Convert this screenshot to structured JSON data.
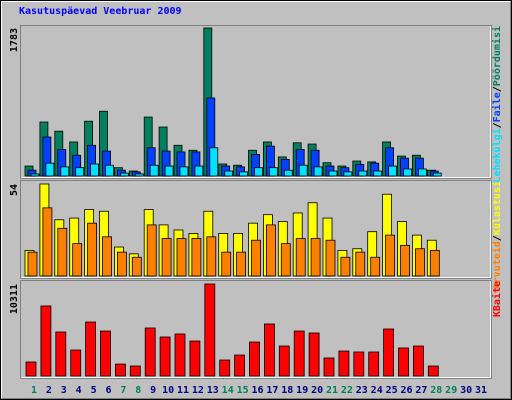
{
  "chart_data": [
    {
      "type": "bar",
      "title": "Kasutuspäevad Veebruar 2009",
      "legend_separator": "/",
      "ylim": [
        0,
        1783
      ],
      "yticks": [
        1783
      ],
      "series": [
        {
          "name": "Pöördumisi",
          "color": "#00805c",
          "values": [
            120,
            650,
            540,
            410,
            660,
            780,
            100,
            60,
            710,
            590,
            370,
            310,
            1783,
            145,
            130,
            310,
            410,
            230,
            400,
            385,
            160,
            120,
            180,
            170,
            410,
            240,
            250,
            70,
            null,
            null,
            null
          ]
        },
        {
          "name": "Faile",
          "color": "#0040ff",
          "values": [
            70,
            470,
            320,
            250,
            370,
            300,
            70,
            50,
            340,
            300,
            290,
            290,
            940,
            120,
            110,
            260,
            360,
            200,
            320,
            310,
            120,
            100,
            140,
            155,
            340,
            215,
            215,
            60,
            null,
            null,
            null
          ]
        },
        {
          "name": "Lehekülgi",
          "color": "#00e0ff",
          "values": [
            25,
            155,
            110,
            100,
            145,
            130,
            35,
            25,
            130,
            120,
            110,
            120,
            340,
            60,
            50,
            100,
            100,
            70,
            130,
            110,
            60,
            50,
            60,
            60,
            120,
            85,
            85,
            35,
            null,
            null,
            null
          ]
        }
      ]
    },
    {
      "type": "bar",
      "legend_separator": "/",
      "ylim": [
        0,
        54
      ],
      "yticks": [
        54
      ],
      "series": [
        {
          "name": "Külastusi",
          "color": "#ffff00",
          "values": [
            15,
            54,
            33,
            34,
            39,
            38,
            17,
            13,
            39,
            30,
            27,
            25,
            38,
            25,
            25,
            31,
            36,
            32,
            37,
            43,
            34,
            15,
            16,
            26,
            48,
            32,
            24,
            21,
            null,
            null,
            null
          ]
        },
        {
          "name": "Arvuteid",
          "color": "#ff8000",
          "values": [
            14,
            40,
            28,
            19,
            31,
            23,
            14,
            11,
            30,
            22,
            22,
            22,
            23,
            14,
            14,
            21,
            30,
            19,
            22,
            22,
            21,
            11,
            14,
            11,
            24,
            18,
            16,
            15,
            null,
            null,
            null
          ]
        }
      ]
    },
    {
      "type": "bar",
      "ylim": [
        0,
        10311
      ],
      "yticks": [
        10311
      ],
      "categories": [
        "1",
        "2",
        "3",
        "4",
        "5",
        "6",
        "7",
        "8",
        "9",
        "10",
        "11",
        "12",
        "13",
        "14",
        "15",
        "16",
        "17",
        "18",
        "19",
        "20",
        "21",
        "22",
        "23",
        "24",
        "25",
        "26",
        "27",
        "28",
        "29",
        "30",
        "31"
      ],
      "category_colors": [
        "#00805c",
        "#000080",
        "#000080",
        "#000080",
        "#000080",
        "#000080",
        "#00805c",
        "#00805c",
        "#000080",
        "#000080",
        "#000080",
        "#000080",
        "#000080",
        "#00805c",
        "#00805c",
        "#000080",
        "#000080",
        "#000080",
        "#000080",
        "#000080",
        "#00805c",
        "#00805c",
        "#000080",
        "#000080",
        "#000080",
        "#000080",
        "#000080",
        "#00805c",
        "#00805c",
        "#000080",
        "#000080"
      ],
      "series": [
        {
          "name": "KBaite",
          "color": "#ff0000",
          "values": [
            1570,
            7850,
            4930,
            2910,
            6050,
            5040,
            1340,
            1120,
            5380,
            4370,
            4710,
            3920,
            10311,
            1790,
            2350,
            3810,
            5830,
            3360,
            5040,
            4820,
            2020,
            2800,
            2690,
            2690,
            5270,
            3140,
            3360,
            1120,
            null,
            null,
            null
          ]
        }
      ]
    }
  ]
}
